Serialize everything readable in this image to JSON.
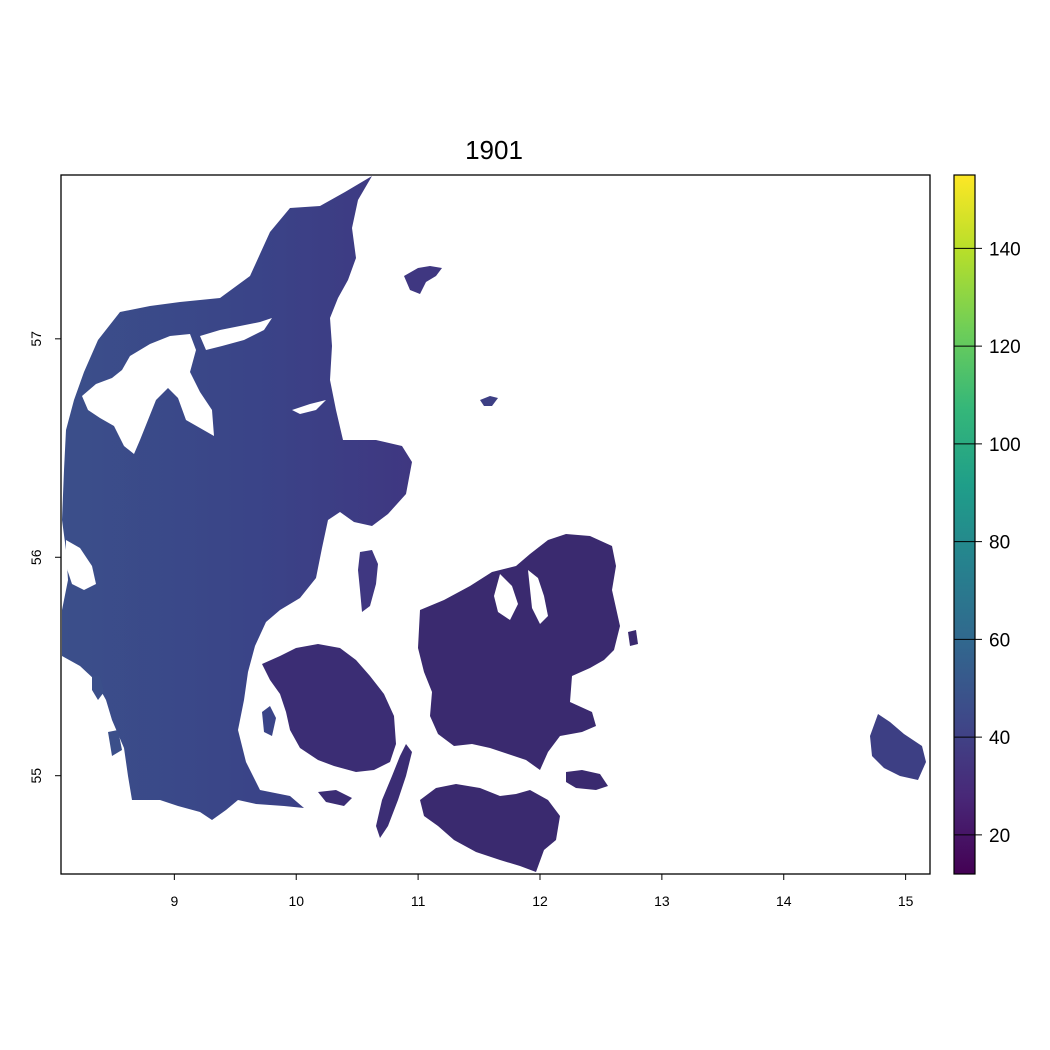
{
  "chart_data": {
    "type": "heatmap",
    "title": "1901",
    "xlim": [
      8.07,
      15.2
    ],
    "ylim": [
      54.55,
      57.75
    ],
    "x_ticks": [
      "9",
      "10",
      "11",
      "12",
      "13",
      "14",
      "15"
    ],
    "y_ticks": [
      "55",
      "56",
      "57"
    ],
    "colorbar": {
      "min": 12,
      "max": 155,
      "ticks": [
        "20",
        "40",
        "60",
        "80",
        "100",
        "120",
        "140"
      ],
      "palette": [
        "#440154",
        "#482878",
        "#3e4989",
        "#31688e",
        "#26828e",
        "#1f9e89",
        "#35b779",
        "#6ece58",
        "#b5de2b",
        "#fde725"
      ]
    },
    "fill_colors": {
      "west_jutland": "#3b4f8a",
      "central_jutland": "#3a4488",
      "north_jutland": "#3f3781",
      "funen": "#3b2d74",
      "zealand": "#3a2a6f",
      "bornholm": "#3d3f84"
    }
  }
}
